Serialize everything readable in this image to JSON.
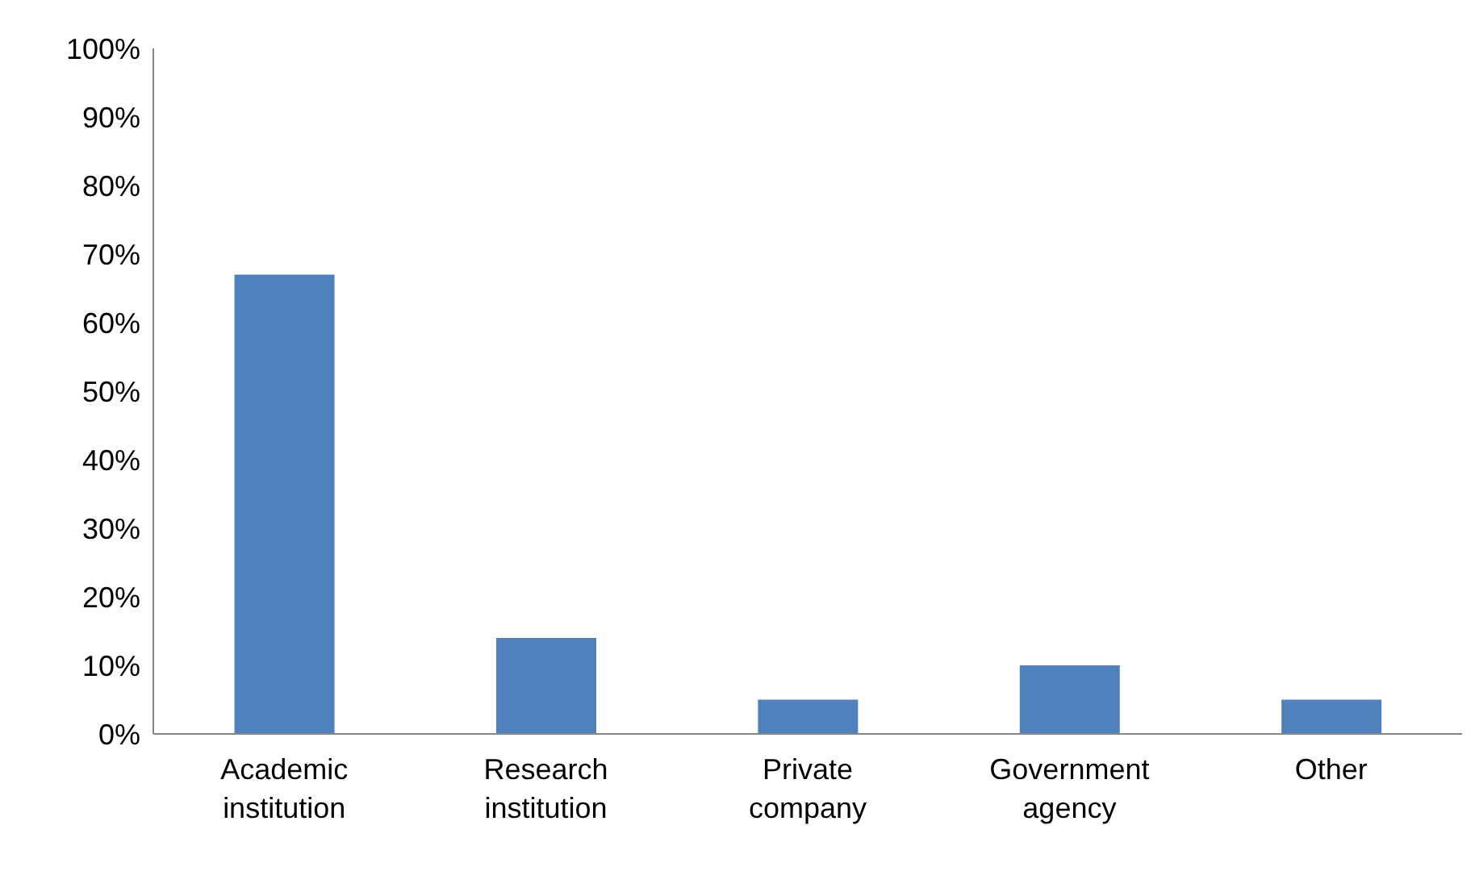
{
  "chart_data": {
    "type": "bar",
    "categories": [
      "Academic institution",
      "Research institution",
      "Private company",
      "Government agency",
      "Other"
    ],
    "values": [
      67,
      14,
      5,
      10,
      5
    ],
    "color": "#4f81bd",
    "ylim": [
      0,
      100
    ],
    "yticks": [
      {
        "value": 0,
        "label": "0%"
      },
      {
        "value": 10,
        "label": "10%"
      },
      {
        "value": 20,
        "label": "20%"
      },
      {
        "value": 30,
        "label": "30%"
      },
      {
        "value": 40,
        "label": "40%"
      },
      {
        "value": 50,
        "label": "50%"
      },
      {
        "value": 60,
        "label": "60%"
      },
      {
        "value": 70,
        "label": "70%"
      },
      {
        "value": 80,
        "label": "80%"
      },
      {
        "value": 90,
        "label": "90%"
      },
      {
        "value": 100,
        "label": "100%"
      }
    ],
    "grid": false,
    "legend": false
  }
}
